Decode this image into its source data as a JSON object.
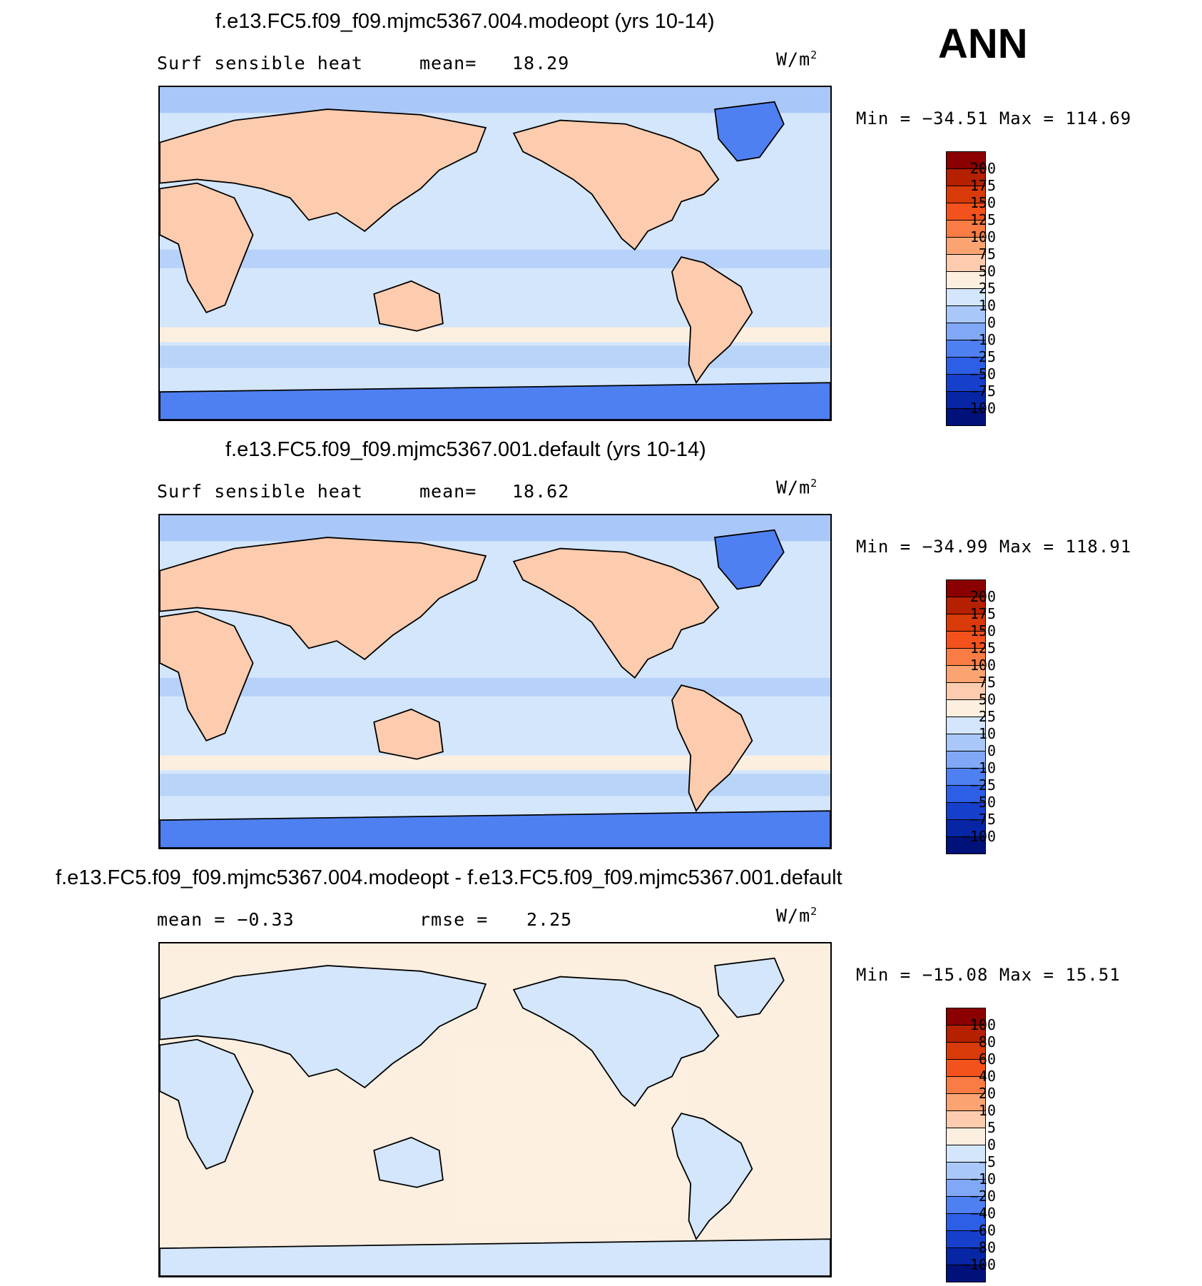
{
  "season": "ANN",
  "panels": [
    {
      "title": "f.e13.FC5.f09_f09.mjmc5367.004.modeopt (yrs 10-14)",
      "left_text": "Surf sensible heat",
      "stat_label": "mean=",
      "stat_value": "18.29",
      "unit": "W/m",
      "unit_sup": "2",
      "range_text": "Min  =  −34.51  Max  =  114.69",
      "map_data": {
        "min": -34.51,
        "max": 114.69,
        "mean": 18.29
      },
      "levels": [
        "200",
        "175",
        "150",
        "125",
        "100",
        "75",
        "50",
        "25",
        "10",
        "0",
        "−10",
        "−25",
        "−50",
        "−75",
        "−100"
      ],
      "colors": [
        "#8b0000",
        "#b42000",
        "#d83a0a",
        "#f4521c",
        "#f97c44",
        "#fba472",
        "#fdcbae",
        "#fdefe0",
        "#d3e6fb",
        "#a9c8f9",
        "#80a8f6",
        "#4f80f1",
        "#2c5ee6",
        "#1640cc",
        "#0626a6",
        "#00127a"
      ]
    },
    {
      "title": "f.e13.FC5.f09_f09.mjmc5367.001.default (yrs 10-14)",
      "left_text": "Surf sensible heat",
      "stat_label": "mean=",
      "stat_value": "18.62",
      "unit": "W/m",
      "unit_sup": "2",
      "range_text": "Min  =  −34.99  Max  =  118.91",
      "map_data": {
        "min": -34.99,
        "max": 118.91,
        "mean": 18.62
      },
      "levels": [
        "200",
        "175",
        "150",
        "125",
        "100",
        "75",
        "50",
        "25",
        "10",
        "0",
        "−10",
        "−25",
        "−50",
        "−75",
        "−100"
      ],
      "colors": [
        "#8b0000",
        "#b42000",
        "#d83a0a",
        "#f4521c",
        "#f97c44",
        "#fba472",
        "#fdcbae",
        "#fdefe0",
        "#d3e6fb",
        "#a9c8f9",
        "#80a8f6",
        "#4f80f1",
        "#2c5ee6",
        "#1640cc",
        "#0626a6",
        "#00127a"
      ]
    },
    {
      "title": "f.e13.FC5.f09_f09.mjmc5367.004.modeopt - f.e13.FC5.f09_f09.mjmc5367.001.default",
      "left_text": "mean =   −0.33",
      "stat_label": "rmse =",
      "stat_value": "2.25",
      "unit": "W/m",
      "unit_sup": "2",
      "range_text": "Min  =  −15.08  Max  =   15.51",
      "map_data": {
        "min": -15.08,
        "max": 15.51,
        "mean": -0.33,
        "rmse": 2.25
      },
      "levels": [
        "100",
        "80",
        "60",
        "40",
        "20",
        "10",
        "5",
        "0",
        "−5",
        "−10",
        "−20",
        "−40",
        "−60",
        "−80",
        "−100"
      ],
      "colors": [
        "#8b0000",
        "#b42000",
        "#d83a0a",
        "#f4521c",
        "#f97c44",
        "#fba472",
        "#fdcbae",
        "#fdefe0",
        "#d3e6fb",
        "#a9c8f9",
        "#80a8f6",
        "#4f80f1",
        "#2c5ee6",
        "#1640cc",
        "#0626a6",
        "#00127a"
      ]
    }
  ]
}
